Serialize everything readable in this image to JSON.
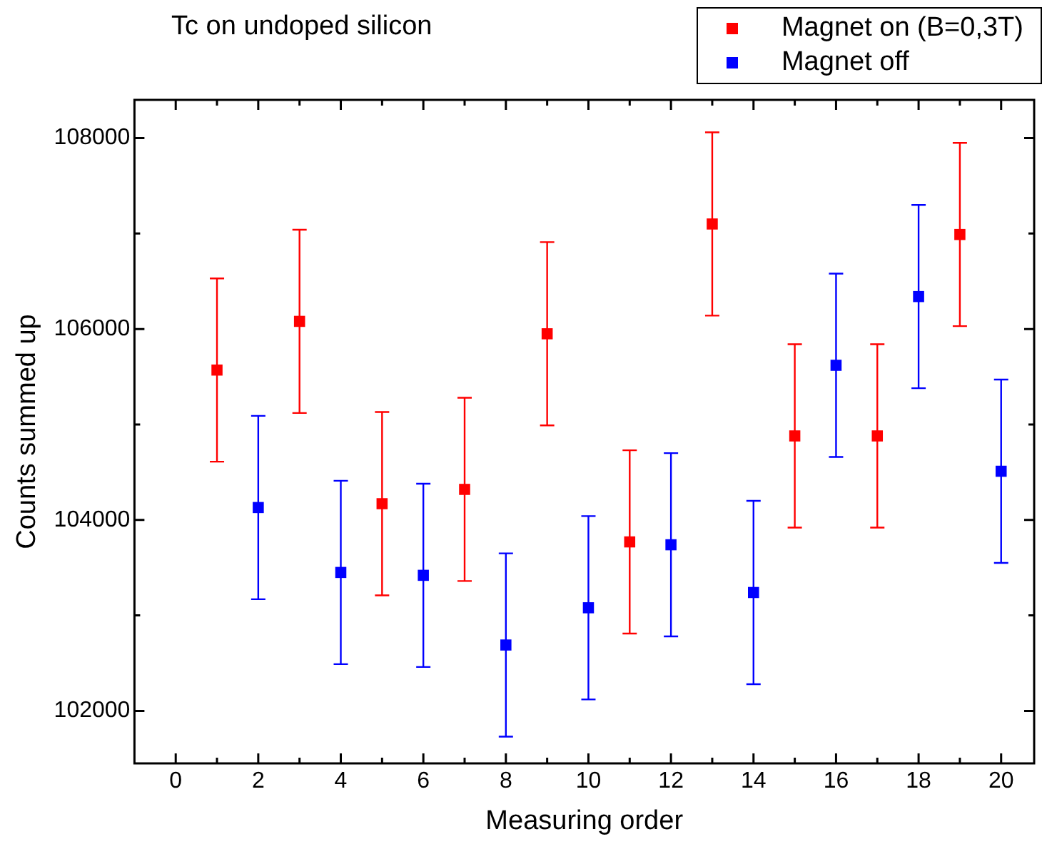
{
  "chart_data": {
    "type": "scatter",
    "title": "Tc on undoped silicon",
    "xlabel": "Measuring order",
    "ylabel": "Counts summed up",
    "xlim": [
      -1,
      20.8
    ],
    "ylim": [
      101450,
      108400
    ],
    "xticks": [
      0,
      {
        "value": 1,
        "label": null
      },
      2,
      {
        "value": 3,
        "label": null
      },
      4,
      {
        "value": 5,
        "label": null
      },
      6,
      {
        "value": 7,
        "label": null
      },
      8,
      {
        "value": 9,
        "label": null
      },
      10,
      {
        "value": 11,
        "label": null
      },
      12,
      {
        "value": 13,
        "label": null
      },
      14,
      {
        "value": 15,
        "label": null
      },
      16,
      {
        "value": 17,
        "label": null
      },
      18,
      {
        "value": 19,
        "label": null
      },
      20
    ],
    "yticks": [
      {
        "value": 102000,
        "label": "102000"
      },
      {
        "value": 103000,
        "label": null
      },
      {
        "value": 104000,
        "label": "104000"
      },
      {
        "value": 105000,
        "label": null
      },
      {
        "value": 106000,
        "label": "106000"
      },
      {
        "value": 107000,
        "label": null
      },
      {
        "value": 108000,
        "label": "108000"
      }
    ],
    "marker": "square",
    "grid": false,
    "legend": "top right",
    "series": [
      {
        "name": "Magnet on (B=0,3T)",
        "color": "#ff0000",
        "x": [
          1,
          3,
          5,
          7,
          9,
          11,
          13,
          15,
          17,
          19
        ],
        "values": [
          105570,
          106080,
          104170,
          104320,
          105950,
          103770,
          107100,
          104880,
          104880,
          106990
        ],
        "errors": [
          960,
          960,
          960,
          960,
          960,
          960,
          960,
          960,
          960,
          960
        ]
      },
      {
        "name": "Magnet off",
        "color": "#0000ff",
        "x": [
          2,
          4,
          6,
          8,
          10,
          12,
          14,
          16,
          18,
          20
        ],
        "values": [
          104130,
          103450,
          103420,
          102690,
          103080,
          103740,
          103240,
          105620,
          106340,
          104510
        ],
        "errors": [
          960,
          960,
          960,
          960,
          960,
          960,
          960,
          960,
          960,
          960
        ]
      }
    ]
  }
}
